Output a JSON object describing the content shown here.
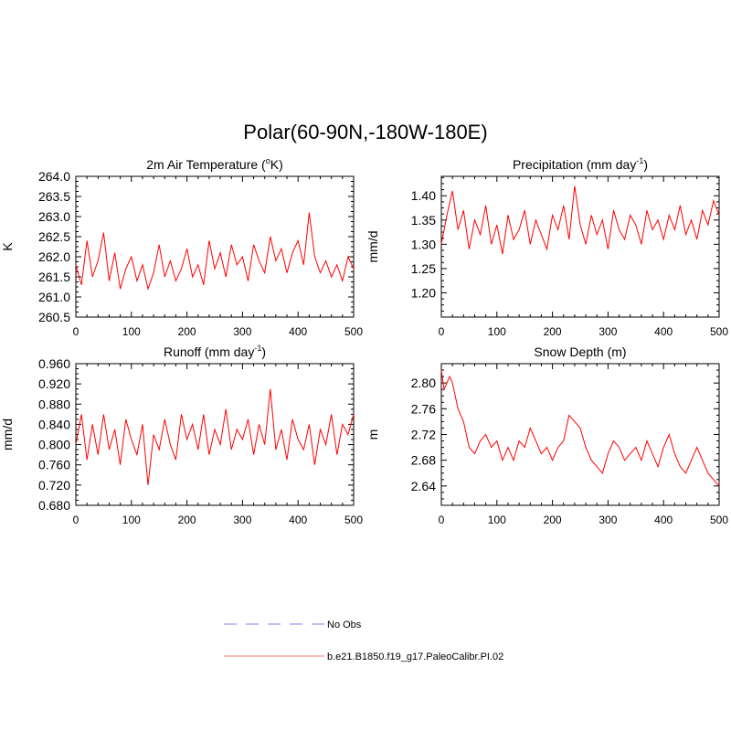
{
  "figure": {
    "title": "Polar(60-90N,-180W-180E)"
  },
  "legend": {
    "entries": [
      {
        "label": "No Obs",
        "color": "#9999ee",
        "style": "dashed"
      },
      {
        "label": "b.e21.B1850.f19_g17.PaleoCalibr.PI.02",
        "color": "#f4a6a6",
        "style": "solid"
      }
    ]
  },
  "chart_data": [
    {
      "type": "line",
      "title": "2m Air Temperature (oK)",
      "title_parts": {
        "pre": "2m Air Temperature (",
        "sup": "o",
        "post": "K)"
      },
      "xlabel": "",
      "ylabel": "K",
      "xlim": [
        0,
        500
      ],
      "ylim": [
        260.5,
        264.0
      ],
      "xticks": [
        0,
        100,
        200,
        300,
        400,
        500
      ],
      "xtick_labels": [
        "0",
        "100",
        "200",
        "300",
        "400",
        "500"
      ],
      "yticks": [
        260.5,
        261.0,
        261.5,
        262.0,
        262.5,
        263.0,
        263.5,
        264.0
      ],
      "ytick_labels": [
        "260.5",
        "261.0",
        "261.5",
        "262.0",
        "262.5",
        "263.0",
        "263.5",
        "264.0"
      ],
      "series": [
        {
          "name": "b.e21.B1850.f19_g17.PaleoCalibr.PI.02",
          "color": "#ff0000",
          "x": [
            0,
            10,
            20,
            30,
            40,
            50,
            60,
            70,
            80,
            90,
            100,
            110,
            120,
            130,
            140,
            150,
            160,
            170,
            180,
            190,
            200,
            210,
            220,
            230,
            240,
            250,
            260,
            270,
            280,
            290,
            300,
            310,
            320,
            330,
            340,
            350,
            360,
            370,
            380,
            390,
            400,
            410,
            420,
            430,
            440,
            450,
            460,
            470,
            480,
            490,
            500
          ],
          "y": [
            261.8,
            261.3,
            262.4,
            261.5,
            261.9,
            262.6,
            261.4,
            262.1,
            261.2,
            261.7,
            262.0,
            261.4,
            261.8,
            261.2,
            261.6,
            262.3,
            261.5,
            261.9,
            261.4,
            261.7,
            262.2,
            261.5,
            261.8,
            261.3,
            262.4,
            261.7,
            262.1,
            261.5,
            262.3,
            261.8,
            262.0,
            261.4,
            262.3,
            261.9,
            261.6,
            262.5,
            261.9,
            262.2,
            261.6,
            262.1,
            262.4,
            261.8,
            263.1,
            262.0,
            261.6,
            261.9,
            261.5,
            261.8,
            261.4,
            262.0,
            261.7
          ]
        }
      ]
    },
    {
      "type": "line",
      "title": "Precipitation (mm day-1)",
      "title_parts": {
        "pre": "Precipitation (mm day",
        "sup": "-1",
        "post": ")"
      },
      "xlabel": "",
      "ylabel": "mm/d",
      "xlim": [
        0,
        500
      ],
      "ylim": [
        1.15,
        1.44
      ],
      "xticks": [
        0,
        100,
        200,
        300,
        400,
        500
      ],
      "xtick_labels": [
        "0",
        "100",
        "200",
        "300",
        "400",
        "500"
      ],
      "yticks": [
        1.2,
        1.25,
        1.3,
        1.35,
        1.4
      ],
      "ytick_labels": [
        "1.20",
        "1.25",
        "1.30",
        "1.35",
        "1.40"
      ],
      "series": [
        {
          "name": "b.e21.B1850.f19_g17.PaleoCalibr.PI.02",
          "color": "#ff0000",
          "x": [
            0,
            10,
            20,
            30,
            40,
            50,
            60,
            70,
            80,
            90,
            100,
            110,
            120,
            130,
            140,
            150,
            160,
            170,
            180,
            190,
            200,
            210,
            220,
            230,
            240,
            250,
            260,
            270,
            280,
            290,
            300,
            310,
            320,
            330,
            340,
            350,
            360,
            370,
            380,
            390,
            400,
            410,
            420,
            430,
            440,
            450,
            460,
            470,
            480,
            490,
            500
          ],
          "y": [
            1.3,
            1.36,
            1.41,
            1.33,
            1.37,
            1.29,
            1.35,
            1.32,
            1.38,
            1.3,
            1.34,
            1.28,
            1.36,
            1.31,
            1.33,
            1.37,
            1.3,
            1.35,
            1.32,
            1.29,
            1.36,
            1.33,
            1.38,
            1.31,
            1.42,
            1.34,
            1.3,
            1.36,
            1.32,
            1.35,
            1.29,
            1.37,
            1.33,
            1.31,
            1.36,
            1.34,
            1.3,
            1.37,
            1.33,
            1.35,
            1.31,
            1.36,
            1.33,
            1.38,
            1.32,
            1.35,
            1.31,
            1.37,
            1.34,
            1.39,
            1.36
          ]
        }
      ]
    },
    {
      "type": "line",
      "title": "Runoff (mm day-1)",
      "title_parts": {
        "pre": "Runoff (mm day",
        "sup": "-1",
        "post": ")"
      },
      "xlabel": "",
      "ylabel": "mm/d",
      "xlim": [
        0,
        500
      ],
      "ylim": [
        0.68,
        0.96
      ],
      "xticks": [
        0,
        100,
        200,
        300,
        400,
        500
      ],
      "xtick_labels": [
        "0",
        "100",
        "200",
        "300",
        "400",
        "500"
      ],
      "yticks": [
        0.68,
        0.72,
        0.76,
        0.8,
        0.84,
        0.88,
        0.92,
        0.96
      ],
      "ytick_labels": [
        "0.680",
        "0.720",
        "0.760",
        "0.800",
        "0.840",
        "0.880",
        "0.920",
        "0.960"
      ],
      "series": [
        {
          "name": "b.e21.B1850.f19_g17.PaleoCalibr.PI.02",
          "color": "#ff0000",
          "x": [
            0,
            10,
            20,
            30,
            40,
            50,
            60,
            70,
            80,
            90,
            100,
            110,
            120,
            130,
            140,
            150,
            160,
            170,
            180,
            190,
            200,
            210,
            220,
            230,
            240,
            250,
            260,
            270,
            280,
            290,
            300,
            310,
            320,
            330,
            340,
            350,
            360,
            370,
            380,
            390,
            400,
            410,
            420,
            430,
            440,
            450,
            460,
            470,
            480,
            490,
            500
          ],
          "y": [
            0.8,
            0.86,
            0.77,
            0.84,
            0.78,
            0.86,
            0.79,
            0.83,
            0.76,
            0.85,
            0.81,
            0.78,
            0.84,
            0.72,
            0.82,
            0.79,
            0.85,
            0.8,
            0.77,
            0.86,
            0.81,
            0.84,
            0.79,
            0.86,
            0.78,
            0.83,
            0.8,
            0.87,
            0.79,
            0.83,
            0.81,
            0.85,
            0.78,
            0.84,
            0.8,
            0.91,
            0.79,
            0.83,
            0.77,
            0.85,
            0.81,
            0.79,
            0.84,
            0.76,
            0.83,
            0.8,
            0.86,
            0.78,
            0.84,
            0.82,
            0.86
          ]
        }
      ]
    },
    {
      "type": "line",
      "title": "Snow Depth (m)",
      "xlabel": "",
      "ylabel": "m",
      "xlim": [
        0,
        500
      ],
      "ylim": [
        2.61,
        2.83
      ],
      "xticks": [
        0,
        100,
        200,
        300,
        400,
        500
      ],
      "xtick_labels": [
        "0",
        "100",
        "200",
        "300",
        "400",
        "500"
      ],
      "yticks": [
        2.64,
        2.68,
        2.72,
        2.76,
        2.8
      ],
      "ytick_labels": [
        "2.64",
        "2.68",
        "2.72",
        "2.76",
        "2.80"
      ],
      "series": [
        {
          "name": "b.e21.B1850.f19_g17.PaleoCalibr.PI.02",
          "color": "#ff0000",
          "x": [
            0,
            5,
            10,
            15,
            20,
            25,
            30,
            40,
            50,
            60,
            70,
            80,
            90,
            100,
            110,
            120,
            130,
            140,
            150,
            160,
            170,
            180,
            190,
            200,
            210,
            220,
            230,
            240,
            250,
            260,
            270,
            280,
            290,
            300,
            310,
            320,
            330,
            340,
            350,
            360,
            370,
            380,
            390,
            400,
            410,
            420,
            430,
            440,
            450,
            460,
            470,
            480,
            490,
            500
          ],
          "y": [
            2.82,
            2.79,
            2.8,
            2.81,
            2.8,
            2.78,
            2.76,
            2.74,
            2.7,
            2.69,
            2.71,
            2.72,
            2.7,
            2.71,
            2.68,
            2.7,
            2.68,
            2.71,
            2.7,
            2.73,
            2.71,
            2.69,
            2.7,
            2.68,
            2.7,
            2.71,
            2.75,
            2.74,
            2.73,
            2.7,
            2.68,
            2.67,
            2.66,
            2.69,
            2.71,
            2.7,
            2.68,
            2.69,
            2.7,
            2.68,
            2.71,
            2.69,
            2.67,
            2.7,
            2.72,
            2.69,
            2.67,
            2.66,
            2.68,
            2.7,
            2.68,
            2.66,
            2.65,
            2.64
          ]
        }
      ]
    }
  ]
}
